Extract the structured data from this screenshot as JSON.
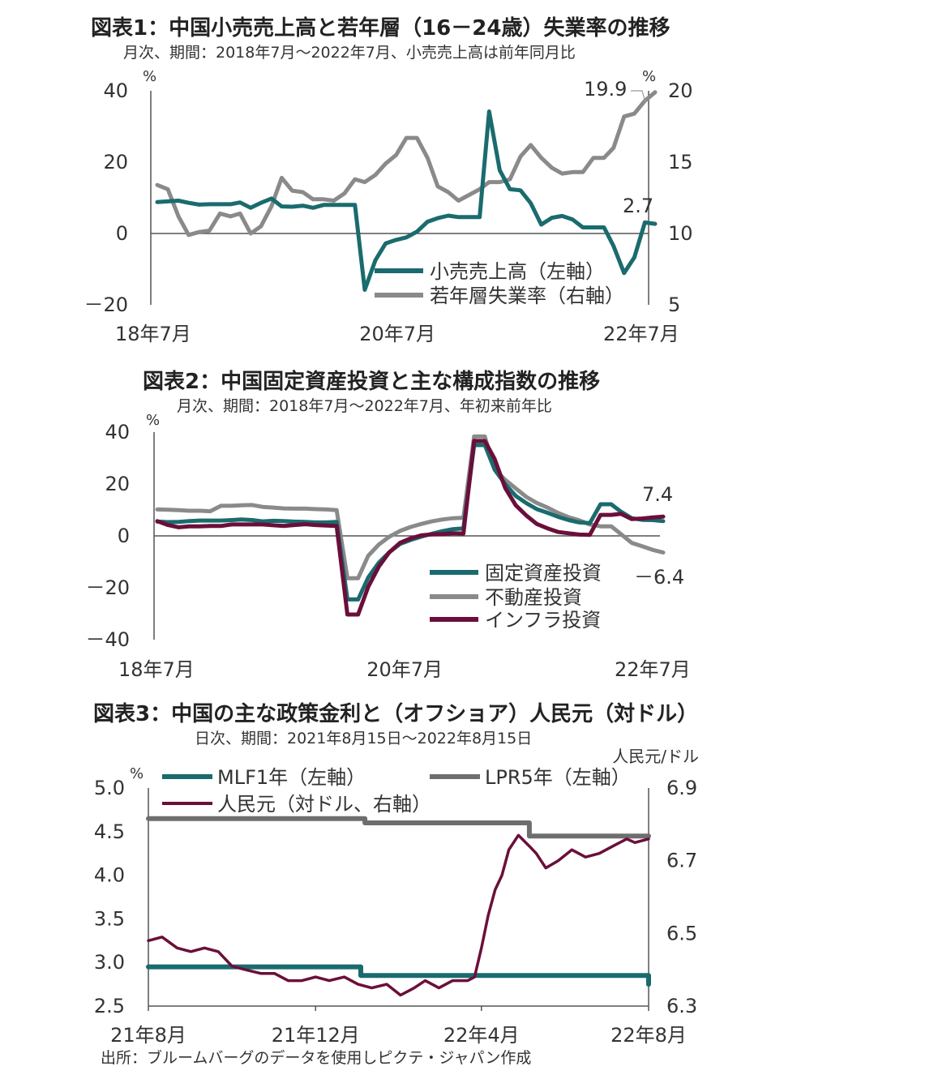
{
  "source_note": "出所：ブルームバーグのデータを使用しピクテ・ジャパン作成",
  "charts": [
    {
      "title": "図表1：中国小売売上高と若年層（16－24歳）失業率の推移",
      "subtitle": "月次、期間：2018年7月～2022年7月、小売売上高は前年同月比",
      "chart_data": {
        "type": "line",
        "x_ticks": [
          "18年7月",
          "20年7月",
          "22年7月"
        ],
        "y_left": {
          "unit": "%",
          "range": [
            -20,
            40
          ],
          "ticks": [
            "－20",
            "0",
            "20",
            "40"
          ]
        },
        "y_right": {
          "unit": "%",
          "range": [
            5,
            20
          ],
          "ticks": [
            "5",
            "10",
            "15",
            "20"
          ]
        },
        "series": [
          {
            "name": "小売売上高（左軸）",
            "axis": "left",
            "color": "#1a6b6e",
            "x": [
              "2018-07",
              "2018-08",
              "2018-09",
              "2018-10",
              "2018-11",
              "2018-12",
              "2019-01",
              "2019-02",
              "2019-03",
              "2019-04",
              "2019-05",
              "2019-06",
              "2019-07",
              "2019-08",
              "2019-09",
              "2019-10",
              "2019-11",
              "2019-12",
              "2020-01",
              "2020-02",
              "2020-03",
              "2020-04",
              "2020-05",
              "2020-06",
              "2020-07",
              "2020-08",
              "2020-09",
              "2020-10",
              "2020-11",
              "2020-12",
              "2021-01",
              "2021-02",
              "2021-03",
              "2021-04",
              "2021-05",
              "2021-06",
              "2021-07",
              "2021-08",
              "2021-09",
              "2021-10",
              "2021-11",
              "2021-12",
              "2022-01",
              "2022-02",
              "2022-03",
              "2022-04",
              "2022-05",
              "2022-06",
              "2022-07"
            ],
            "values": [
              8.8,
              9.0,
              9.2,
              8.6,
              8.1,
              8.2,
              8.2,
              8.2,
              8.7,
              7.2,
              8.6,
              9.8,
              7.6,
              7.5,
              7.8,
              7.2,
              8.0,
              8.0,
              8.0,
              8.0,
              -15.8,
              -7.5,
              -2.8,
              -1.8,
              -1.1,
              0.5,
              3.3,
              4.3,
              5.0,
              4.6,
              4.6,
              4.6,
              34.2,
              17.7,
              12.4,
              12.1,
              8.5,
              2.5,
              4.4,
              4.9,
              3.9,
              1.7,
              1.7,
              1.7,
              -3.5,
              -11.1,
              -6.7,
              3.1,
              2.7
            ],
            "end_label": "2.7"
          },
          {
            "name": "若年層失業率（右軸）",
            "axis": "right",
            "color": "#8a8a8a",
            "x": [
              "2018-07",
              "2018-08",
              "2018-09",
              "2018-10",
              "2018-11",
              "2018-12",
              "2019-01",
              "2019-02",
              "2019-03",
              "2019-04",
              "2019-05",
              "2019-06",
              "2019-07",
              "2019-08",
              "2019-09",
              "2019-10",
              "2019-11",
              "2019-12",
              "2020-01",
              "2020-02",
              "2020-03",
              "2020-04",
              "2020-05",
              "2020-06",
              "2020-07",
              "2020-08",
              "2020-09",
              "2020-10",
              "2020-11",
              "2020-12",
              "2021-01",
              "2021-02",
              "2021-03",
              "2021-04",
              "2021-05",
              "2021-06",
              "2021-07",
              "2021-08",
              "2021-09",
              "2021-10",
              "2021-11",
              "2021-12",
              "2022-01",
              "2022-02",
              "2022-03",
              "2022-04",
              "2022-05",
              "2022-06",
              "2022-07"
            ],
            "values": [
              13.4,
              13.1,
              11.2,
              9.9,
              10.1,
              10.2,
              11.4,
              11.2,
              11.4,
              10.0,
              10.5,
              11.9,
              13.9,
              13.0,
              12.9,
              12.4,
              12.4,
              12.3,
              12.8,
              13.8,
              13.6,
              14.1,
              14.9,
              15.5,
              16.7,
              16.7,
              15.3,
              13.3,
              12.9,
              12.3,
              12.7,
              13.1,
              13.6,
              13.6,
              13.8,
              15.4,
              16.2,
              15.3,
              14.6,
              14.2,
              14.3,
              14.3,
              15.3,
              15.3,
              16.0,
              18.2,
              18.4,
              19.3,
              19.9
            ],
            "end_label": "19.9"
          }
        ]
      }
    },
    {
      "title": "図表2：中国固定資産投資と主な構成指数の推移",
      "subtitle": "月次、期間：2018年7月～2022年7月、年初来前年比",
      "chart_data": {
        "type": "line",
        "x_ticks": [
          "18年7月",
          "20年7月",
          "22年7月"
        ],
        "y_left": {
          "unit": "%",
          "range": [
            -40,
            40
          ],
          "ticks": [
            "－40",
            "－20",
            "0",
            "20",
            "40"
          ]
        },
        "series": [
          {
            "name": "固定資産投資",
            "color": "#1a6b6e",
            "x": [
              "2018-07",
              "2018-08",
              "2018-09",
              "2018-10",
              "2018-11",
              "2018-12",
              "2019-01",
              "2019-02",
              "2019-03",
              "2019-04",
              "2019-05",
              "2019-06",
              "2019-07",
              "2019-08",
              "2019-09",
              "2019-10",
              "2019-11",
              "2019-12",
              "2020-01",
              "2020-02",
              "2020-03",
              "2020-04",
              "2020-05",
              "2020-06",
              "2020-07",
              "2020-08",
              "2020-09",
              "2020-10",
              "2020-11",
              "2020-12",
              "2021-01",
              "2021-02",
              "2021-03",
              "2021-04",
              "2021-05",
              "2021-06",
              "2021-07",
              "2021-08",
              "2021-09",
              "2021-10",
              "2021-11",
              "2021-12",
              "2022-01",
              "2022-02",
              "2022-03",
              "2022-04",
              "2022-05",
              "2022-06",
              "2022-07"
            ],
            "values": [
              5.5,
              5.3,
              5.4,
              5.7,
              5.9,
              5.9,
              5.9,
              6.1,
              6.3,
              6.1,
              5.6,
              5.8,
              5.7,
              5.5,
              5.4,
              5.2,
              5.2,
              5.4,
              -24.5,
              -24.5,
              -16.1,
              -10.3,
              -6.3,
              -3.1,
              -1.6,
              -0.3,
              0.8,
              1.8,
              2.6,
              2.9,
              35.0,
              35.0,
              25.6,
              19.9,
              15.4,
              12.6,
              10.3,
              8.9,
              7.3,
              6.1,
              5.2,
              4.9,
              12.2,
              12.2,
              9.3,
              6.8,
              6.2,
              6.1,
              5.7
            ],
            "end_label": ""
          },
          {
            "name": "不動産投資",
            "color": "#8a8a8a",
            "x": [
              "2018-07",
              "2018-08",
              "2018-09",
              "2018-10",
              "2018-11",
              "2018-12",
              "2019-01",
              "2019-02",
              "2019-03",
              "2019-04",
              "2019-05",
              "2019-06",
              "2019-07",
              "2019-08",
              "2019-09",
              "2019-10",
              "2019-11",
              "2019-12",
              "2020-01",
              "2020-02",
              "2020-03",
              "2020-04",
              "2020-05",
              "2020-06",
              "2020-07",
              "2020-08",
              "2020-09",
              "2020-10",
              "2020-11",
              "2020-12",
              "2021-01",
              "2021-02",
              "2021-03",
              "2021-04",
              "2021-05",
              "2021-06",
              "2021-07",
              "2021-08",
              "2021-09",
              "2021-10",
              "2021-11",
              "2021-12",
              "2022-01",
              "2022-02",
              "2022-03",
              "2022-04",
              "2022-05",
              "2022-06",
              "2022-07"
            ],
            "values": [
              10.2,
              10.1,
              9.9,
              9.7,
              9.7,
              9.5,
              11.6,
              11.6,
              11.8,
              11.9,
              11.2,
              10.9,
              10.6,
              10.5,
              10.5,
              10.3,
              10.2,
              9.9,
              -16.3,
              -16.3,
              -7.7,
              -3.3,
              -0.3,
              1.9,
              3.4,
              4.6,
              5.6,
              6.3,
              6.8,
              7.0,
              38.3,
              38.3,
              25.6,
              21.6,
              18.3,
              15.0,
              12.7,
              10.9,
              8.8,
              7.2,
              6.0,
              4.4,
              3.7,
              3.7,
              0.7,
              -2.7,
              -4.0,
              -5.4,
              -6.4
            ],
            "end_label": "－6.4"
          },
          {
            "name": "インフラ投資",
            "color": "#6b0f3a",
            "x": [
              "2018-07",
              "2018-08",
              "2018-09",
              "2018-10",
              "2018-11",
              "2018-12",
              "2019-01",
              "2019-02",
              "2019-03",
              "2019-04",
              "2019-05",
              "2019-06",
              "2019-07",
              "2019-08",
              "2019-09",
              "2019-10",
              "2019-11",
              "2019-12",
              "2020-01",
              "2020-02",
              "2020-03",
              "2020-04",
              "2020-05",
              "2020-06",
              "2020-07",
              "2020-08",
              "2020-09",
              "2020-10",
              "2020-11",
              "2020-12",
              "2021-01",
              "2021-02",
              "2021-03",
              "2021-04",
              "2021-05",
              "2021-06",
              "2021-07",
              "2021-08",
              "2021-09",
              "2021-10",
              "2021-11",
              "2021-12",
              "2022-01",
              "2022-02",
              "2022-03",
              "2022-04",
              "2022-05",
              "2022-06",
              "2022-07"
            ],
            "values": [
              5.7,
              4.2,
              3.3,
              3.7,
              3.7,
              3.8,
              3.8,
              4.4,
              4.4,
              4.4,
              4.4,
              4.1,
              3.8,
              4.2,
              4.5,
              4.2,
              4.0,
              3.8,
              -30.3,
              -30.3,
              -19.7,
              -11.8,
              -6.3,
              -2.7,
              -1.0,
              0.2,
              0.6,
              0.7,
              1.0,
              0.9,
              36.6,
              36.6,
              29.7,
              18.4,
              11.8,
              7.8,
              4.6,
              2.9,
              1.5,
              1.0,
              0.5,
              0.4,
              8.1,
              8.1,
              8.5,
              6.5,
              6.7,
              7.1,
              7.4
            ],
            "end_label": "7.4"
          }
        ]
      }
    },
    {
      "title": "図表3：中国の主な政策金利と（オフショア）人民元（対ドル）",
      "subtitle": "日次、期間：2021年8月15日～2022年8月15日",
      "chart_data": {
        "type": "line",
        "x_ticks": [
          "21年8月",
          "21年12月",
          "22年4月",
          "22年8月"
        ],
        "y_left": {
          "unit": "%",
          "range": [
            2.5,
            5.0
          ],
          "ticks": [
            "2.5",
            "3.0",
            "3.5",
            "4.0",
            "4.5",
            "5.0"
          ]
        },
        "y_right": {
          "unit": "人民元/ドル",
          "range": [
            6.3,
            6.9
          ],
          "ticks": [
            "6.3",
            "6.5",
            "6.7",
            "6.9"
          ]
        },
        "series": [
          {
            "name": "MLF1年（左軸）",
            "axis": "left",
            "color": "#1a6b6e",
            "x": [
              "2021-08-15",
              "2022-01-16",
              "2022-01-17",
              "2022-08-14",
              "2022-08-15"
            ],
            "values": [
              2.95,
              2.95,
              2.85,
              2.85,
              2.75
            ]
          },
          {
            "name": "LPR5年（左軸）",
            "axis": "left",
            "color": "#6e6e6e",
            "x": [
              "2021-08-15",
              "2022-01-19",
              "2022-01-20",
              "2022-05-19",
              "2022-05-20",
              "2022-08-15"
            ],
            "values": [
              4.65,
              4.65,
              4.6,
              4.6,
              4.45,
              4.45
            ]
          },
          {
            "name": "人民元（対ドル、右軸）",
            "axis": "right",
            "color": "#6b0f3a",
            "x": [
              "2021-08-15",
              "2021-08-25",
              "2021-09-05",
              "2021-09-15",
              "2021-09-25",
              "2021-10-05",
              "2021-10-15",
              "2021-10-25",
              "2021-11-05",
              "2021-11-15",
              "2021-11-25",
              "2021-12-05",
              "2021-12-15",
              "2021-12-25",
              "2022-01-05",
              "2022-01-15",
              "2022-01-25",
              "2022-02-05",
              "2022-02-15",
              "2022-02-25",
              "2022-03-05",
              "2022-03-15",
              "2022-03-25",
              "2022-04-05",
              "2022-04-10",
              "2022-04-15",
              "2022-04-20",
              "2022-04-25",
              "2022-04-30",
              "2022-05-05",
              "2022-05-12",
              "2022-05-20",
              "2022-05-25",
              "2022-06-01",
              "2022-06-10",
              "2022-06-20",
              "2022-06-30",
              "2022-07-10",
              "2022-07-20",
              "2022-07-30",
              "2022-08-05",
              "2022-08-15"
            ],
            "values": [
              6.48,
              6.49,
              6.46,
              6.45,
              6.46,
              6.45,
              6.41,
              6.4,
              6.39,
              6.39,
              6.37,
              6.37,
              6.38,
              6.37,
              6.38,
              6.36,
              6.35,
              6.36,
              6.33,
              6.35,
              6.37,
              6.35,
              6.37,
              6.37,
              6.38,
              6.46,
              6.55,
              6.62,
              6.66,
              6.73,
              6.77,
              6.74,
              6.72,
              6.68,
              6.7,
              6.73,
              6.71,
              6.72,
              6.74,
              6.76,
              6.75,
              6.76
            ],
            "end_label": ""
          }
        ]
      }
    }
  ]
}
